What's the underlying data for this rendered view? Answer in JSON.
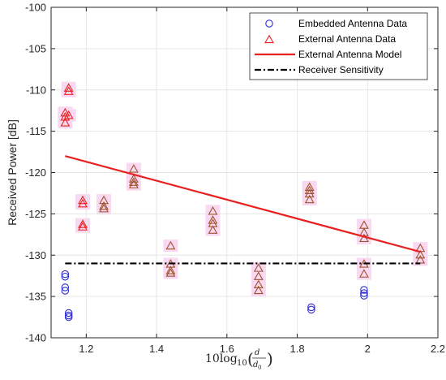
{
  "chart_data": {
    "type": "scatter",
    "xlabel_main": "10log",
    "xlabel_sub": "10",
    "xlabel_num": "d",
    "xlabel_den": "d",
    "xlabel_den_sub": "0",
    "ylabel": "Received Power [dB]",
    "xlim": [
      1.1,
      2.2
    ],
    "ylim": [
      -140,
      -100
    ],
    "xticks": [
      1.2,
      1.4,
      1.6,
      1.8,
      2,
      2.2
    ],
    "xtick_labels": [
      "1.2",
      "1.4",
      "1.6",
      "1.8",
      "2",
      "2.2"
    ],
    "yticks": [
      -140,
      -135,
      -130,
      -125,
      -120,
      -115,
      -110,
      -105,
      -100
    ],
    "ytick_labels": [
      "-140",
      "-135",
      "-130",
      "-125",
      "-120",
      "-115",
      "-110",
      "-105",
      "-100"
    ],
    "grid": true,
    "legend_position": "top-right",
    "colors": {
      "embedded": "#2b2bd6",
      "external_red": "#e8201f",
      "external_brown": "#a0522d",
      "model": "#e8201f",
      "sensitivity": "#000000",
      "highlight": "#f9d9f2"
    },
    "series": [
      {
        "name": "Embedded Antenna Data",
        "marker": "circle",
        "points": [
          [
            1.14,
            -132.3
          ],
          [
            1.14,
            -132.6
          ],
          [
            1.14,
            -133.9
          ],
          [
            1.14,
            -134.3
          ],
          [
            1.15,
            -137.0
          ],
          [
            1.15,
            -137.3
          ],
          [
            1.15,
            -137.5
          ],
          [
            1.84,
            -136.3
          ],
          [
            1.84,
            -136.6
          ],
          [
            1.99,
            -134.2
          ],
          [
            1.99,
            -134.6
          ],
          [
            1.99,
            -134.9
          ]
        ]
      },
      {
        "name": "External Antenna Data",
        "marker": "triangle",
        "points": [
          [
            1.14,
            -112.8
          ],
          [
            1.14,
            -113.3
          ],
          [
            1.14,
            -114.0
          ],
          [
            1.15,
            -109.8
          ],
          [
            1.15,
            -110.2
          ],
          [
            1.15,
            -113.1
          ],
          [
            1.19,
            -123.4
          ],
          [
            1.19,
            -123.8
          ],
          [
            1.19,
            -126.3
          ],
          [
            1.19,
            -126.6
          ],
          [
            1.25,
            -123.4
          ],
          [
            1.25,
            -124.1
          ],
          [
            1.25,
            -124.4
          ],
          [
            1.335,
            -119.6
          ],
          [
            1.335,
            -120.8
          ],
          [
            1.335,
            -121.2
          ],
          [
            1.335,
            -121.5
          ],
          [
            1.44,
            -128.9
          ],
          [
            1.44,
            -131.1
          ],
          [
            1.44,
            -131.9
          ],
          [
            1.44,
            -132.2
          ],
          [
            1.56,
            -124.7
          ],
          [
            1.56,
            -125.8
          ],
          [
            1.56,
            -126.2
          ],
          [
            1.56,
            -127.0
          ],
          [
            1.69,
            -131.6
          ],
          [
            1.69,
            -132.6
          ],
          [
            1.69,
            -133.6
          ],
          [
            1.69,
            -134.3
          ],
          [
            1.835,
            -121.8
          ],
          [
            1.835,
            -122.2
          ],
          [
            1.835,
            -122.6
          ],
          [
            1.835,
            -123.3
          ],
          [
            1.99,
            -126.4
          ],
          [
            1.99,
            -127.3
          ],
          [
            1.99,
            -128.0
          ],
          [
            1.99,
            -131.1
          ],
          [
            1.99,
            -132.3
          ],
          [
            2.15,
            -129.2
          ],
          [
            2.15,
            -130.0
          ],
          [
            2.15,
            -130.6
          ]
        ]
      },
      {
        "name": "External Antenna Model",
        "line": "solid",
        "points": [
          [
            1.14,
            -118.0
          ],
          [
            2.15,
            -129.6
          ]
        ]
      },
      {
        "name": "Receiver Sensitivity",
        "line": "dashdot",
        "points": [
          [
            1.14,
            -131.0
          ],
          [
            2.15,
            -131.0
          ]
        ]
      }
    ]
  }
}
